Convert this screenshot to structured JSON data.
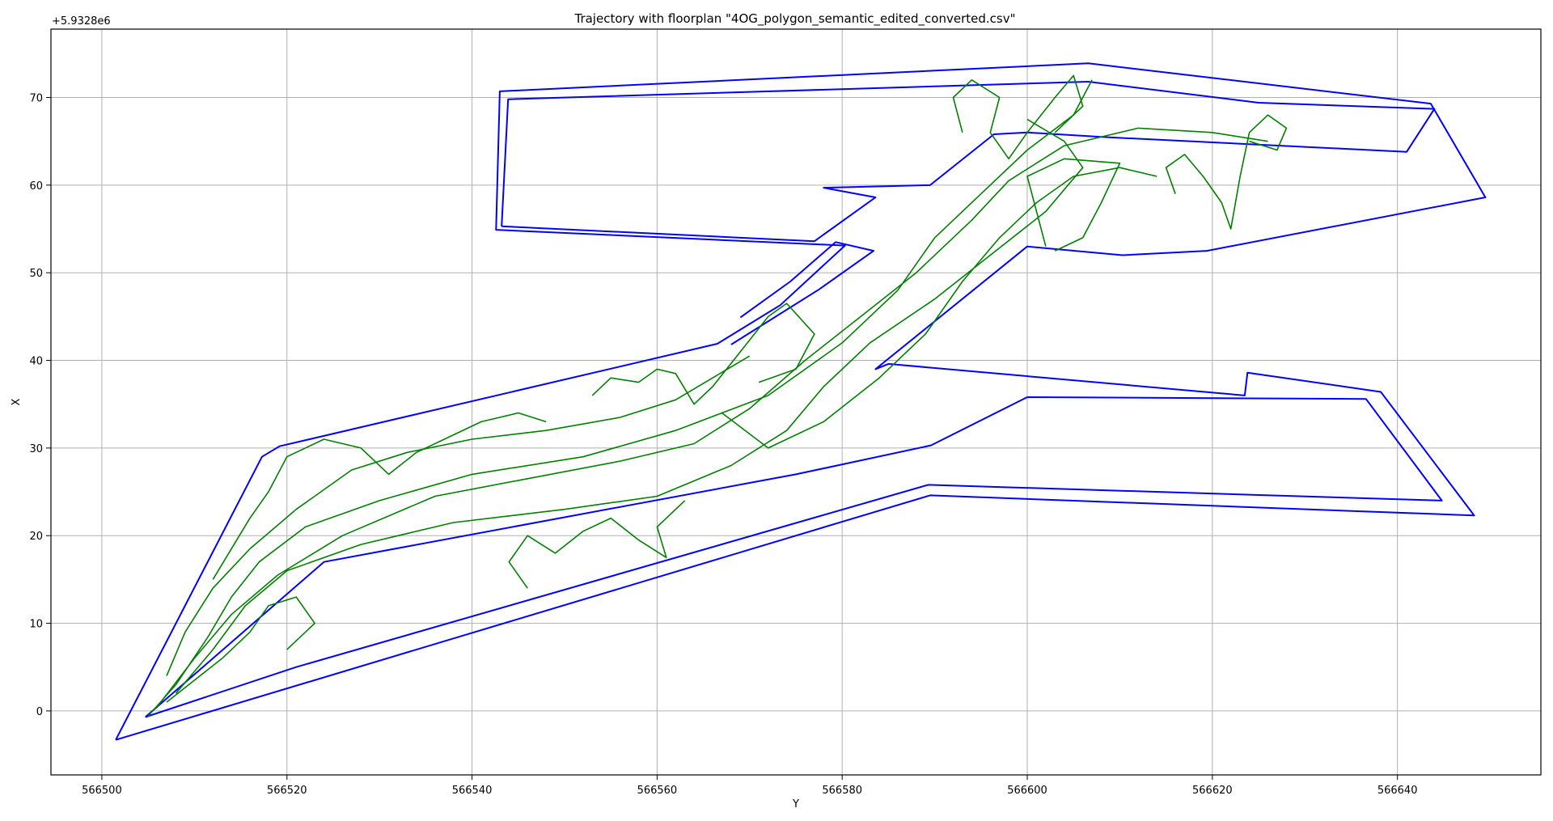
{
  "chart_data": {
    "type": "line",
    "title": "Trajectory with floorplan \"4OG_polygon_semantic_edited_converted.csv\"",
    "xlabel": "Y",
    "ylabel": "X",
    "offset_label": "+5.9328e6",
    "xlim": [
      566494.5,
      566655.5
    ],
    "ylim": [
      -7.3,
      77.8
    ],
    "x_ticks": [
      566500,
      566520,
      566540,
      566560,
      566580,
      566600,
      566620,
      566640
    ],
    "y_ticks": [
      0,
      10,
      20,
      30,
      40,
      50,
      60,
      70
    ],
    "grid": true,
    "colors": {
      "floorplan": "#0000ff",
      "trajectory": "#008000",
      "grid": "#b0b0b0"
    },
    "series": [
      {
        "role": "floorplan-outline",
        "points": [
          [
            566501.5,
            -3.3
          ],
          [
            566589.5,
            24.6
          ],
          [
            566648.3,
            22.3
          ],
          [
            566638.2,
            36.4
          ],
          [
            566623.8,
            38.6
          ],
          [
            566623.5,
            36.0
          ],
          [
            566585.0,
            39.6
          ],
          [
            566583.6,
            39.0
          ],
          [
            566600.0,
            53.0
          ],
          [
            566610.3,
            52.0
          ],
          [
            566619.4,
            52.5
          ],
          [
            566649.5,
            58.6
          ],
          [
            566643.6,
            69.3
          ],
          [
            566606.6,
            73.9
          ],
          [
            566543.0,
            70.7
          ],
          [
            566542.6,
            54.9
          ],
          [
            566580.3,
            53.1
          ],
          [
            566573.3,
            46.3
          ],
          [
            566566.5,
            41.9
          ],
          [
            566519.2,
            30.2
          ],
          [
            566517.3,
            29.0
          ],
          [
            566501.5,
            -3.3
          ]
        ]
      },
      {
        "role": "floorplan-inner-south",
        "points": [
          [
            566504.7,
            -0.7
          ],
          [
            566521.0,
            5.0
          ],
          [
            566589.3,
            25.8
          ],
          [
            566644.8,
            24.0
          ],
          [
            566636.6,
            35.6
          ],
          [
            566600.0,
            35.8
          ],
          [
            566589.6,
            30.3
          ],
          [
            566575.0,
            27.0
          ],
          [
            566524.0,
            17.0
          ],
          [
            566504.7,
            -0.7
          ]
        ]
      },
      {
        "role": "floorplan-inner-north",
        "points": [
          [
            566543.2,
            55.3
          ],
          [
            566577.0,
            53.6
          ],
          [
            566583.6,
            58.6
          ],
          [
            566578.0,
            59.7
          ],
          [
            566589.5,
            60.0
          ],
          [
            566596.4,
            65.8
          ],
          [
            566600.0,
            66.0
          ],
          [
            566608.0,
            65.5
          ],
          [
            566641.0,
            63.8
          ],
          [
            566644.0,
            68.7
          ],
          [
            566625.0,
            69.4
          ],
          [
            566606.6,
            71.8
          ],
          [
            566543.9,
            69.8
          ],
          [
            566543.2,
            55.3
          ]
        ]
      },
      {
        "role": "floorplan-bridge",
        "points": [
          [
            566568.0,
            41.8
          ],
          [
            566577.5,
            48.1
          ],
          [
            566583.4,
            52.5
          ],
          [
            566579.3,
            53.5
          ],
          [
            566574.4,
            49.0
          ],
          [
            566569.0,
            44.9
          ]
        ]
      },
      {
        "role": "trajectory",
        "points": [
          [
            566505.0,
            -0.6
          ],
          [
            566508.0,
            3.0
          ],
          [
            566511.5,
            8.5
          ],
          [
            566514.0,
            13.0
          ],
          [
            566517.0,
            17.0
          ],
          [
            566522.0,
            21.0
          ],
          [
            566530.0,
            24.0
          ],
          [
            566540.0,
            27.0
          ],
          [
            566552.0,
            29.0
          ],
          [
            566562.0,
            32.0
          ],
          [
            566572.0,
            36.0
          ],
          [
            566580.0,
            42.0
          ],
          [
            566586.0,
            48.0
          ],
          [
            566590.0,
            54.0
          ],
          [
            566595.0,
            59.0
          ],
          [
            566600.0,
            64.0
          ],
          [
            566605.0,
            68.0
          ],
          [
            566607.0,
            72.0
          ]
        ]
      },
      {
        "role": "trajectory",
        "points": [
          [
            566506.0,
            0.5
          ],
          [
            566510.0,
            6.0
          ],
          [
            566514.0,
            11.0
          ],
          [
            566519.0,
            15.5
          ],
          [
            566526.0,
            20.0
          ],
          [
            566536.0,
            24.5
          ],
          [
            566546.0,
            26.5
          ],
          [
            566556.0,
            28.5
          ],
          [
            566564.0,
            30.5
          ],
          [
            566570.0,
            34.5
          ],
          [
            566576.0,
            40.0
          ],
          [
            566582.0,
            45.0
          ],
          [
            566588.0,
            50.0
          ],
          [
            566594.0,
            56.0
          ],
          [
            566598.0,
            60.5
          ],
          [
            566604.0,
            64.5
          ],
          [
            566612.0,
            66.5
          ],
          [
            566620.0,
            66.0
          ],
          [
            566626.0,
            65.0
          ]
        ]
      },
      {
        "role": "trajectory",
        "points": [
          [
            566508.0,
            2.0
          ],
          [
            566512.0,
            7.0
          ],
          [
            566515.5,
            12.0
          ],
          [
            566520.0,
            16.0
          ],
          [
            566528.0,
            19.0
          ],
          [
            566538.0,
            21.5
          ],
          [
            566550.0,
            23.0
          ],
          [
            566560.0,
            24.5
          ],
          [
            566568.0,
            28.0
          ],
          [
            566574.0,
            32.0
          ],
          [
            566578.0,
            37.0
          ],
          [
            566583.0,
            42.0
          ],
          [
            566590.0,
            47.0
          ],
          [
            566596.0,
            52.0
          ],
          [
            566602.0,
            57.0
          ],
          [
            566606.0,
            62.0
          ],
          [
            566604.0,
            65.0
          ],
          [
            566600.0,
            67.5
          ]
        ]
      },
      {
        "role": "trajectory",
        "points": [
          [
            566507.0,
            4.0
          ],
          [
            566509.0,
            9.0
          ],
          [
            566512.0,
            14.0
          ],
          [
            566516.0,
            18.5
          ],
          [
            566521.0,
            23.0
          ],
          [
            566527.0,
            27.5
          ],
          [
            566533.0,
            29.5
          ],
          [
            566540.0,
            31.0
          ],
          [
            566548.0,
            32.0
          ],
          [
            566556.0,
            33.5
          ],
          [
            566562.0,
            35.5
          ],
          [
            566566.0,
            38.0
          ],
          [
            566570.0,
            40.5
          ]
        ]
      },
      {
        "role": "trajectory",
        "points": [
          [
            566567.0,
            34.0
          ],
          [
            566572.0,
            30.0
          ],
          [
            566578.0,
            33.0
          ],
          [
            566584.0,
            38.0
          ],
          [
            566589.0,
            43.0
          ],
          [
            566593.0,
            49.0
          ],
          [
            566597.0,
            54.0
          ],
          [
            566601.0,
            58.0
          ],
          [
            566605.0,
            61.0
          ],
          [
            566610.0,
            62.0
          ],
          [
            566614.0,
            61.0
          ]
        ]
      },
      {
        "role": "trajectory",
        "points": [
          [
            566593.0,
            66.0
          ],
          [
            566592.0,
            70.0
          ],
          [
            566594.0,
            72.0
          ],
          [
            566597.0,
            70.0
          ],
          [
            566596.0,
            66.0
          ],
          [
            566598.0,
            63.0
          ],
          [
            566600.0,
            66.0
          ],
          [
            566603.0,
            70.0
          ],
          [
            566605.0,
            72.5
          ],
          [
            566606.0,
            69.0
          ],
          [
            566603.0,
            66.0
          ]
        ]
      },
      {
        "role": "trajectory",
        "points": [
          [
            566602.0,
            53.0
          ],
          [
            566601.0,
            57.0
          ],
          [
            566600.0,
            61.0
          ],
          [
            566604.0,
            63.0
          ],
          [
            566610.0,
            62.5
          ],
          [
            566608.0,
            58.0
          ],
          [
            566606.0,
            54.0
          ],
          [
            566603.0,
            52.5
          ]
        ]
      },
      {
        "role": "trajectory",
        "points": [
          [
            566512.0,
            15.0
          ],
          [
            566516.0,
            22.0
          ],
          [
            566518.0,
            25.0
          ],
          [
            566520.0,
            29.0
          ],
          [
            566524.0,
            31.0
          ],
          [
            566528.0,
            30.0
          ],
          [
            566531.0,
            27.0
          ],
          [
            566534.0,
            29.5
          ],
          [
            566538.0,
            31.5
          ],
          [
            566541.0,
            33.0
          ],
          [
            566545.0,
            34.0
          ],
          [
            566548.0,
            33.0
          ]
        ]
      },
      {
        "role": "trajectory",
        "points": [
          [
            566553.0,
            36.0
          ],
          [
            566555.0,
            38.0
          ],
          [
            566558.0,
            37.5
          ],
          [
            566560.0,
            39.0
          ],
          [
            566562.0,
            38.5
          ],
          [
            566564.0,
            35.0
          ],
          [
            566566.0,
            37.0
          ],
          [
            566569.0,
            41.0
          ],
          [
            566572.0,
            45.0
          ],
          [
            566574.0,
            46.5
          ],
          [
            566577.0,
            43.0
          ],
          [
            566575.0,
            39.0
          ],
          [
            566571.0,
            37.5
          ]
        ]
      },
      {
        "role": "trajectory",
        "points": [
          [
            566520.0,
            7.0
          ],
          [
            566523.0,
            10.0
          ],
          [
            566521.0,
            13.0
          ],
          [
            566518.0,
            12.0
          ],
          [
            566516.0,
            9.0
          ],
          [
            566513.0,
            6.0
          ],
          [
            566510.0,
            3.5
          ],
          [
            566507.0,
            1.0
          ]
        ]
      },
      {
        "role": "trajectory",
        "points": [
          [
            566546.0,
            14.0
          ],
          [
            566544.0,
            17.0
          ],
          [
            566546.0,
            20.0
          ],
          [
            566549.0,
            18.0
          ],
          [
            566552.0,
            20.5
          ],
          [
            566555.0,
            22.0
          ],
          [
            566558.0,
            19.5
          ],
          [
            566561.0,
            17.5
          ],
          [
            566560.0,
            21.0
          ],
          [
            566563.0,
            24.0
          ]
        ]
      },
      {
        "role": "trajectory",
        "points": [
          [
            566616.0,
            59.0
          ],
          [
            566615.0,
            62.0
          ],
          [
            566617.0,
            63.5
          ],
          [
            566619.0,
            61.0
          ],
          [
            566621.0,
            58.0
          ],
          [
            566622.0,
            55.0
          ],
          [
            566623.0,
            61.0
          ],
          [
            566624.0,
            66.0
          ],
          [
            566626.0,
            68.0
          ],
          [
            566628.0,
            66.5
          ],
          [
            566627.0,
            64.0
          ],
          [
            566624.0,
            65.0
          ]
        ]
      }
    ]
  }
}
